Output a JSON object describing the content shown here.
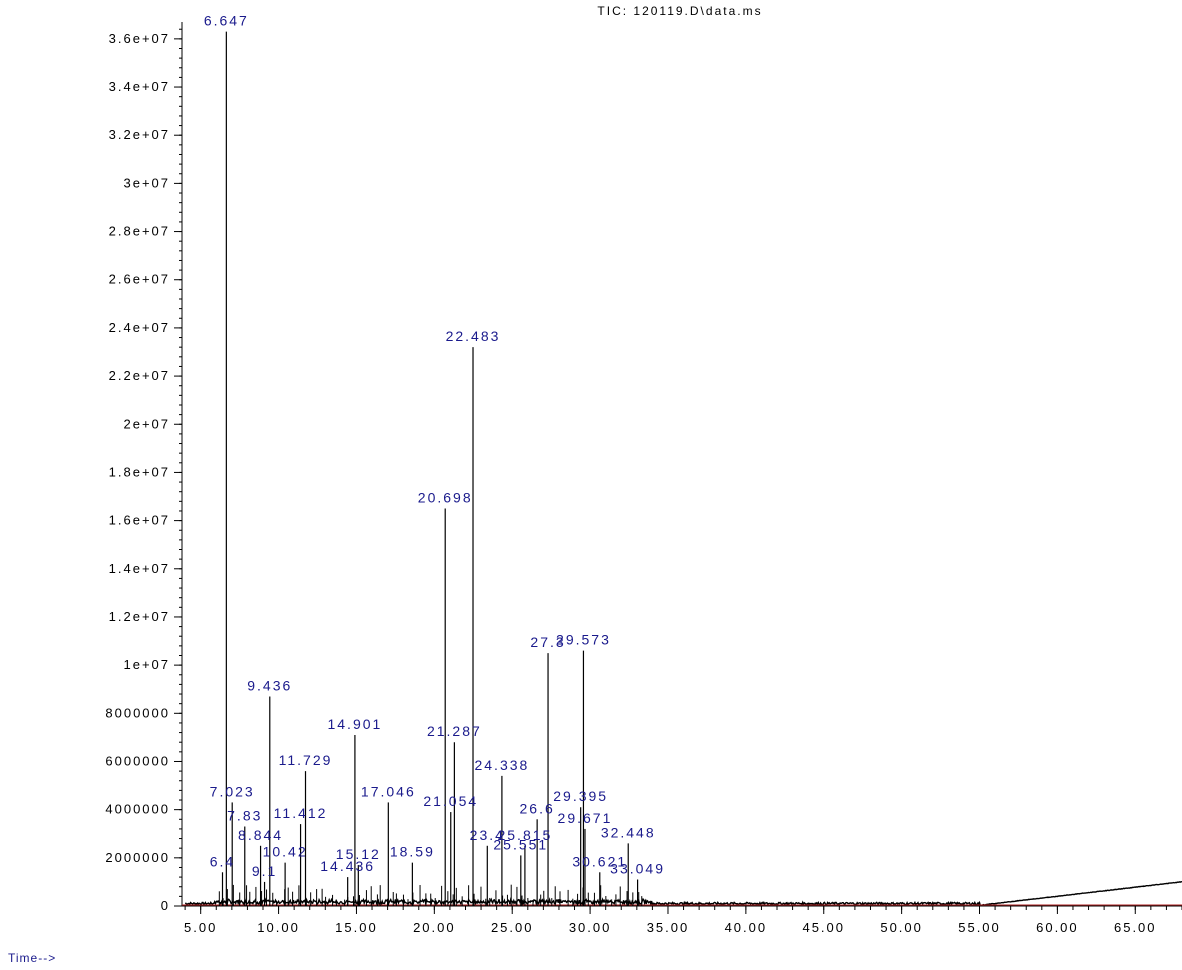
{
  "chart_data": {
    "type": "line",
    "title": "TIC: 120119.D\\data.ms",
    "xlabel": "Time-->",
    "ylabel": "",
    "xlim": [
      3.8,
      68.0
    ],
    "ylim": [
      0,
      36700000
    ],
    "grid": false,
    "x_ticks": [
      5,
      10,
      15,
      20,
      25,
      30,
      35,
      40,
      45,
      50,
      55,
      60,
      65
    ],
    "x_tick_labels": [
      "5.00",
      "10.00",
      "15.00",
      "20.00",
      "25.00",
      "30.00",
      "35.00",
      "40.00",
      "45.00",
      "50.00",
      "55.00",
      "60.00",
      "65.00"
    ],
    "y_ticks": [
      0,
      2000000,
      4000000,
      6000000,
      8000000,
      10000000,
      12000000,
      14000000,
      16000000,
      18000000,
      20000000,
      22000000,
      24000000,
      26000000,
      28000000,
      30000000,
      32000000,
      34000000,
      36000000
    ],
    "y_tick_labels": [
      "0",
      "2000000",
      "4000000",
      "6000000",
      "8000000",
      "1e+07",
      "1.2e+07",
      "1.4e+07",
      "1.6e+07",
      "1.8e+07",
      "2e+07",
      "2.2e+07",
      "2.4e+07",
      "2.6e+07",
      "2.8e+07",
      "3e+07",
      "3.2e+07",
      "3.4e+07",
      "3.6e+07"
    ],
    "peaks": [
      {
        "rt": 6.647,
        "height": 36300000,
        "label": "6.647"
      },
      {
        "rt": 22.483,
        "height": 23200000,
        "label": "22.483"
      },
      {
        "rt": 20.698,
        "height": 16500000,
        "label": "20.698"
      },
      {
        "rt": 29.573,
        "height": 10600000,
        "label": "29.573"
      },
      {
        "rt": 27.3,
        "height": 10500000,
        "label": "27.3"
      },
      {
        "rt": 9.436,
        "height": 8700000,
        "label": "9.436"
      },
      {
        "rt": 14.901,
        "height": 7100000,
        "label": "14.901"
      },
      {
        "rt": 21.287,
        "height": 6800000,
        "label": "21.287"
      },
      {
        "rt": 11.729,
        "height": 5600000,
        "label": "11.729"
      },
      {
        "rt": 24.338,
        "height": 5400000,
        "label": "24.338"
      },
      {
        "rt": 17.046,
        "height": 4300000,
        "label": "17.046"
      },
      {
        "rt": 7.023,
        "height": 4300000,
        "label": "7.023"
      },
      {
        "rt": 29.395,
        "height": 4100000,
        "label": "29.395"
      },
      {
        "rt": 21.054,
        "height": 3900000,
        "label": "21.054"
      },
      {
        "rt": 26.6,
        "height": 3600000,
        "label": "26.6"
      },
      {
        "rt": 11.412,
        "height": 3400000,
        "label": "11.412"
      },
      {
        "rt": 7.83,
        "height": 3300000,
        "label": "7.83"
      },
      {
        "rt": 29.671,
        "height": 3200000,
        "label": "29.671"
      },
      {
        "rt": 32.448,
        "height": 2600000,
        "label": "32.448"
      },
      {
        "rt": 8.844,
        "height": 2500000,
        "label": "8.844"
      },
      {
        "rt": 23.4,
        "height": 2500000,
        "label": "23.4"
      },
      {
        "rt": 25.815,
        "height": 2500000,
        "label": "25.815"
      },
      {
        "rt": 25.551,
        "height": 2100000,
        "label": "25.551"
      },
      {
        "rt": 18.59,
        "height": 1800000,
        "label": "18.59"
      },
      {
        "rt": 10.42,
        "height": 1800000,
        "label": "10.42"
      },
      {
        "rt": 15.12,
        "height": 1700000,
        "label": "15.12"
      },
      {
        "rt": 30.621,
        "height": 1400000,
        "label": "30.621"
      },
      {
        "rt": 33.049,
        "height": 1100000,
        "label": "33.049"
      },
      {
        "rt": 14.436,
        "height": 1200000,
        "label": "14.436"
      },
      {
        "rt": 6.4,
        "height": 1400000,
        "label": "6.4"
      },
      {
        "rt": 9.1,
        "height": 1000000,
        "label": "9.1"
      }
    ]
  }
}
